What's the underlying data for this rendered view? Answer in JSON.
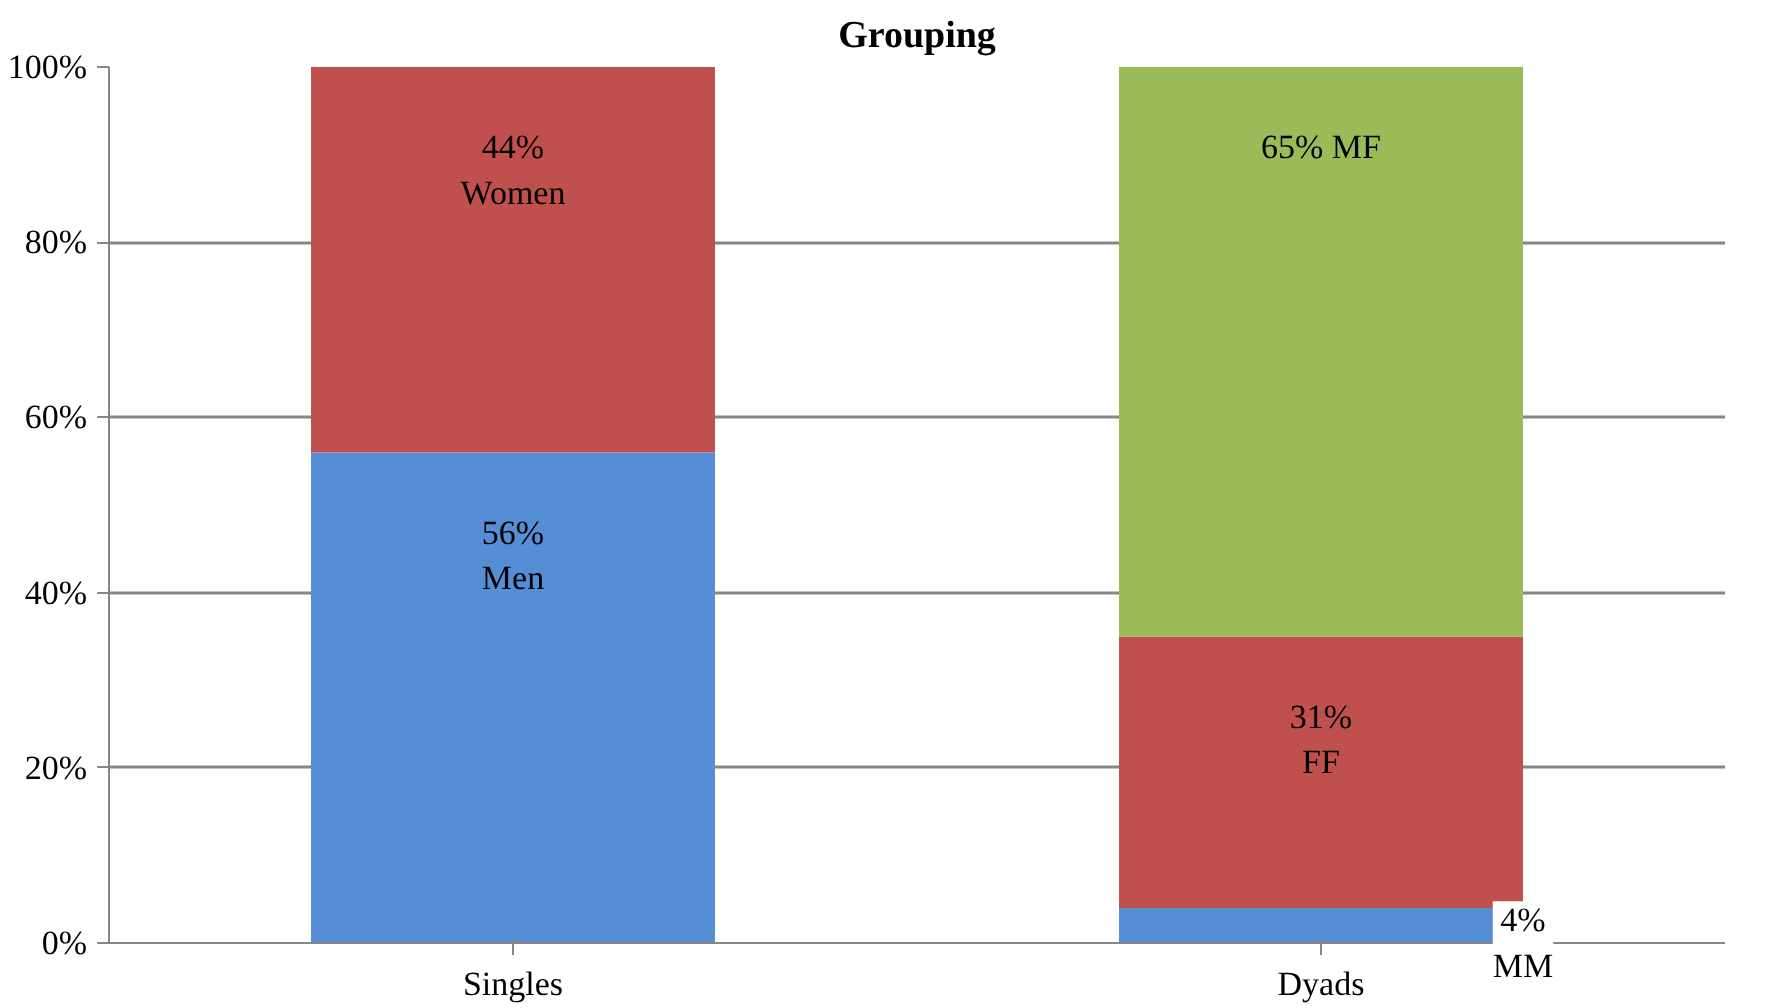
{
  "chart_data": {
    "type": "bar",
    "title": "Grouping",
    "stacked": true,
    "categories": [
      "Singles",
      "Dyads"
    ],
    "series": [
      {
        "color": "#558ed5",
        "values": [
          56,
          4
        ],
        "value_labels": [
          "56%\nMen",
          "4%\nMM"
        ]
      },
      {
        "color": "#c0504d",
        "values": [
          44,
          31
        ],
        "value_labels": [
          "44%\nWomen",
          "31%\nFF"
        ]
      },
      {
        "color": "#9bbb59",
        "values": [
          null,
          65
        ],
        "value_labels": [
          null,
          "65% MF"
        ]
      }
    ],
    "ylim": [
      0,
      100
    ],
    "yticks": [
      {
        "value": 0,
        "label": "0%"
      },
      {
        "value": 20,
        "label": "20%"
      },
      {
        "value": 40,
        "label": "40%"
      },
      {
        "value": 60,
        "label": "60%"
      },
      {
        "value": 80,
        "label": "80%"
      },
      {
        "value": 100,
        "label": "100%"
      }
    ],
    "grid": "y"
  }
}
